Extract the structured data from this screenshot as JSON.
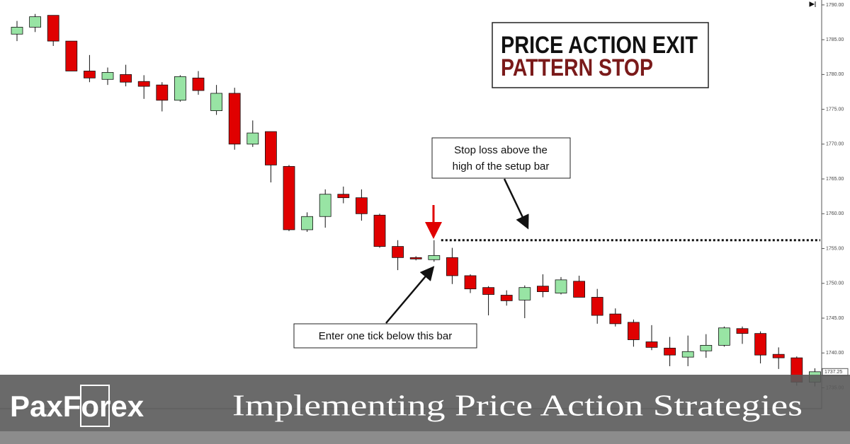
{
  "chart_data": {
    "type": "candlestick",
    "title_lines": [
      "PRICE ACTION EXIT",
      "PATTERN STOP"
    ],
    "annotations": {
      "stop": [
        "Stop loss above the",
        "high of the setup bar"
      ],
      "entry": "Enter one tick below this bar"
    },
    "open": [
      1785.8,
      1786.8,
      1788.5,
      1784.8,
      1780.5,
      1779.3,
      1780.0,
      1779.0,
      1778.5,
      1776.3,
      1779.5,
      1774.8,
      1777.3,
      1770.0,
      1771.8,
      1766.8,
      1757.7,
      1759.6,
      1762.8,
      1762.3,
      1759.8,
      1755.3,
      1753.7,
      1753.4,
      1753.7,
      1751.1,
      1749.4,
      1748.3,
      1747.6,
      1749.6,
      1748.6,
      1750.3,
      1748.0,
      1745.6,
      1744.4,
      1741.6,
      1740.7,
      1739.4,
      1740.3,
      1741.1,
      1743.5,
      1742.8,
      1739.8,
      1739.3,
      1735.8
    ],
    "high": [
      1787.7,
      1788.7,
      1788.5,
      1784.8,
      1782.8,
      1781.0,
      1781.4,
      1779.9,
      1778.9,
      1779.9,
      1780.5,
      1778.5,
      1778.1,
      1773.4,
      1771.8,
      1767.0,
      1760.2,
      1763.5,
      1763.9,
      1763.5,
      1760.0,
      1756.2,
      1753.9,
      1756.2,
      1755.1,
      1751.3,
      1749.6,
      1749.0,
      1749.7,
      1751.3,
      1750.9,
      1751.1,
      1749.2,
      1746.4,
      1744.8,
      1744.0,
      1742.3,
      1742.5,
      1742.7,
      1743.8,
      1743.8,
      1743.1,
      1740.8,
      1739.5,
      1737.8
    ],
    "low": [
      1784.8,
      1786.1,
      1784.1,
      1780.5,
      1778.9,
      1778.5,
      1778.3,
      1776.5,
      1774.7,
      1776.1,
      1777.1,
      1774.2,
      1769.2,
      1769.6,
      1764.5,
      1757.5,
      1757.4,
      1758.0,
      1761.5,
      1759.0,
      1755.1,
      1751.9,
      1753.3,
      1753.1,
      1749.9,
      1748.6,
      1745.4,
      1746.8,
      1745.0,
      1748.0,
      1748.4,
      1748.0,
      1744.2,
      1743.8,
      1740.9,
      1740.4,
      1738.1,
      1738.1,
      1739.3,
      1740.9,
      1741.3,
      1738.5,
      1737.7,
      1735.3,
      1735.2
    ],
    "close": [
      1786.8,
      1788.3,
      1784.8,
      1780.5,
      1779.5,
      1780.3,
      1778.9,
      1778.3,
      1776.3,
      1779.7,
      1777.7,
      1777.3,
      1770.0,
      1771.6,
      1767.0,
      1757.7,
      1759.6,
      1762.8,
      1762.3,
      1760.0,
      1755.3,
      1753.7,
      1753.5,
      1754.0,
      1751.1,
      1749.2,
      1748.4,
      1747.5,
      1749.4,
      1748.8,
      1750.5,
      1748.0,
      1745.4,
      1744.2,
      1741.9,
      1740.8,
      1739.7,
      1740.2,
      1741.1,
      1743.6,
      1742.8,
      1739.7,
      1739.3,
      1735.8,
      1737.3
    ],
    "up_color": "#98e4a4",
    "down_color": "#e00000",
    "ylim": [
      1732,
      1790.5
    ],
    "yticks": [
      {
        "value": 1790,
        "label": "1790.00"
      },
      {
        "value": 1785,
        "label": "1785.00"
      },
      {
        "value": 1780,
        "label": "1780.00"
      },
      {
        "value": 1775,
        "label": "1775.00"
      },
      {
        "value": 1770,
        "label": "1770.00"
      },
      {
        "value": 1765,
        "label": "1765.00"
      },
      {
        "value": 1760,
        "label": "1760.00"
      },
      {
        "value": 1755,
        "label": "1755.00"
      },
      {
        "value": 1750,
        "label": "1750.00"
      },
      {
        "value": 1745,
        "label": "1745.00"
      },
      {
        "value": 1740,
        "label": "1740.00"
      },
      {
        "value": 1735,
        "label": "1735.00"
      }
    ],
    "last_price": {
      "value": 1737.25,
      "label": "1737.25"
    }
  },
  "banner": {
    "logo": "PaxForex",
    "title": "Implementing Price Action Strategies"
  }
}
